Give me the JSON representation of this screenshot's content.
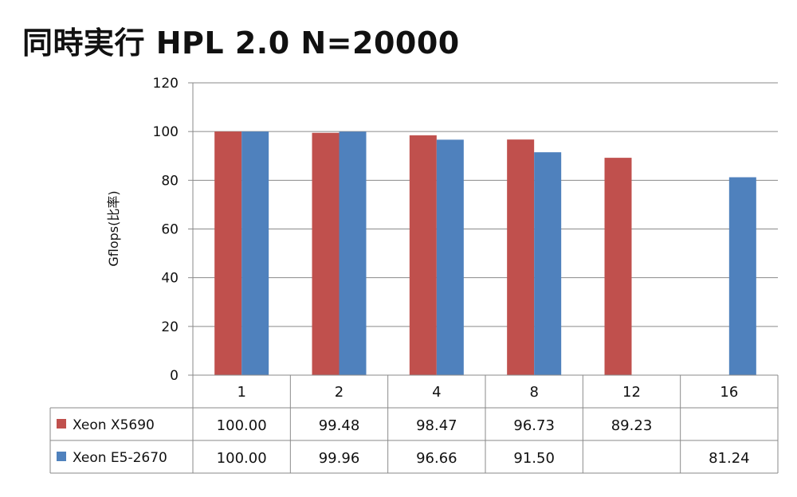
{
  "chart_data": {
    "type": "bar",
    "title": "同時実行 HPL 2.0 N=20000",
    "ylabel": "Gflops(比率)",
    "xlabel": "",
    "ylim": [
      0,
      120
    ],
    "yticks": [
      0,
      20,
      40,
      60,
      80,
      100,
      120
    ],
    "grid": true,
    "legend": "data-table-left",
    "categories": [
      "1",
      "2",
      "4",
      "8",
      "12",
      "16"
    ],
    "series": [
      {
        "name": "Xeon X5690",
        "color": "#C0504D",
        "values": [
          100.0,
          99.48,
          98.47,
          96.73,
          89.23,
          null
        ],
        "labels": [
          "100.00",
          "99.48",
          "98.47",
          "96.73",
          "89.23",
          ""
        ]
      },
      {
        "name": "Xeon E5-2670",
        "color": "#4F81BD",
        "values": [
          100.0,
          99.96,
          96.66,
          91.5,
          null,
          81.24
        ],
        "labels": [
          "100.00",
          "99.96",
          "96.66",
          "91.50",
          "",
          "81.24"
        ]
      }
    ]
  }
}
